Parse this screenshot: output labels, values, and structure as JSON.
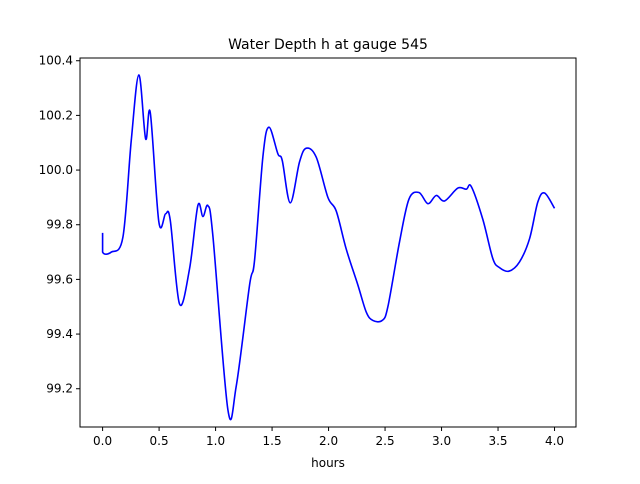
{
  "chart_data": {
    "type": "line",
    "title": "Water Depth h at gauge 545",
    "xlabel": "hours",
    "ylabel": "",
    "xlim": [
      -0.2,
      4.19
    ],
    "ylim": [
      99.06,
      100.41
    ],
    "xticks": [
      0.0,
      0.5,
      1.0,
      1.5,
      2.0,
      2.5,
      3.0,
      3.5,
      4.0
    ],
    "xtick_labels": [
      "0.0",
      "0.5",
      "1.0",
      "1.5",
      "2.0",
      "2.5",
      "3.0",
      "3.5",
      "4.0"
    ],
    "yticks": [
      99.2,
      99.4,
      99.6,
      99.8,
      100.0,
      100.2,
      100.4
    ],
    "ytick_labels": [
      "99.2",
      "99.4",
      "99.6",
      "99.8",
      "100.0",
      "100.2",
      "100.4"
    ],
    "grid": false,
    "series": [
      {
        "name": "h",
        "color": "#0000ff",
        "x": [
          0,
          0,
          0.077,
          0.18,
          0.254,
          0.321,
          0.381,
          0.422,
          0.498,
          0.558,
          0.599,
          0.681,
          0.77,
          0.843,
          0.888,
          0.932,
          0.976,
          1.109,
          1.183,
          1.301,
          1.345,
          1.419,
          1.472,
          1.551,
          1.59,
          1.661,
          1.743,
          1.803,
          1.891,
          1.994,
          2.068,
          2.157,
          2.259,
          2.334,
          2.392,
          2.475,
          2.525,
          2.628,
          2.711,
          2.8,
          2.879,
          2.953,
          3.027,
          3.144,
          3.219,
          3.263,
          3.365,
          3.454,
          3.513,
          3.596,
          3.69,
          3.779,
          3.852,
          3.912,
          4.0
        ],
        "y": [
          99.77,
          99.7,
          99.7,
          99.755,
          100.11,
          100.348,
          100.114,
          100.21,
          99.81,
          99.84,
          99.816,
          99.51,
          99.64,
          99.87,
          99.83,
          99.87,
          99.76,
          99.123,
          99.21,
          99.58,
          99.67,
          100.05,
          100.157,
          100.06,
          100.035,
          99.88,
          100.03,
          100.08,
          100.047,
          99.9,
          99.85,
          99.71,
          99.58,
          99.48,
          99.45,
          99.45,
          99.5,
          99.737,
          99.893,
          99.918,
          99.877,
          99.907,
          99.887,
          99.934,
          99.93,
          99.94,
          99.82,
          99.676,
          99.643,
          99.63,
          99.664,
          99.749,
          99.883,
          99.916,
          99.86
        ]
      }
    ]
  }
}
